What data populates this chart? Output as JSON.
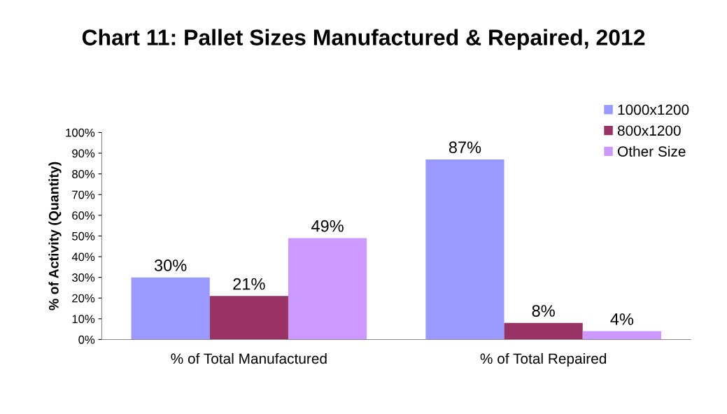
{
  "chart_data": {
    "type": "bar",
    "title": "Chart 11: Pallet Sizes Manufactured & Repaired, 2012",
    "ylabel": "% of Activity (Quantity)",
    "categories": [
      "% of Total Manufactured",
      "% of Total Repaired"
    ],
    "series": [
      {
        "name": "1000x1200",
        "color": "#9999ff",
        "values": [
          30,
          87
        ],
        "value_labels": [
          "30%",
          "87%"
        ]
      },
      {
        "name": "800x1200",
        "color": "#993366",
        "values": [
          21,
          8
        ],
        "value_labels": [
          "21%",
          "8%"
        ]
      },
      {
        "name": "Other Size",
        "color": "#cc99ff",
        "values": [
          49,
          4
        ],
        "value_labels": [
          "49%",
          "4%"
        ]
      }
    ],
    "ylim": [
      0,
      100
    ],
    "yticks": [
      {
        "value": 0,
        "label": "0%"
      },
      {
        "value": 10,
        "label": "10%"
      },
      {
        "value": 20,
        "label": "20%"
      },
      {
        "value": 30,
        "label": "30%"
      },
      {
        "value": 40,
        "label": "40%"
      },
      {
        "value": 50,
        "label": "50%"
      },
      {
        "value": 60,
        "label": "60%"
      },
      {
        "value": 70,
        "label": "70%"
      },
      {
        "value": 80,
        "label": "80%"
      },
      {
        "value": 90,
        "label": "90%"
      },
      {
        "value": 100,
        "label": "100%"
      }
    ],
    "grid": false,
    "legend": "top right"
  }
}
